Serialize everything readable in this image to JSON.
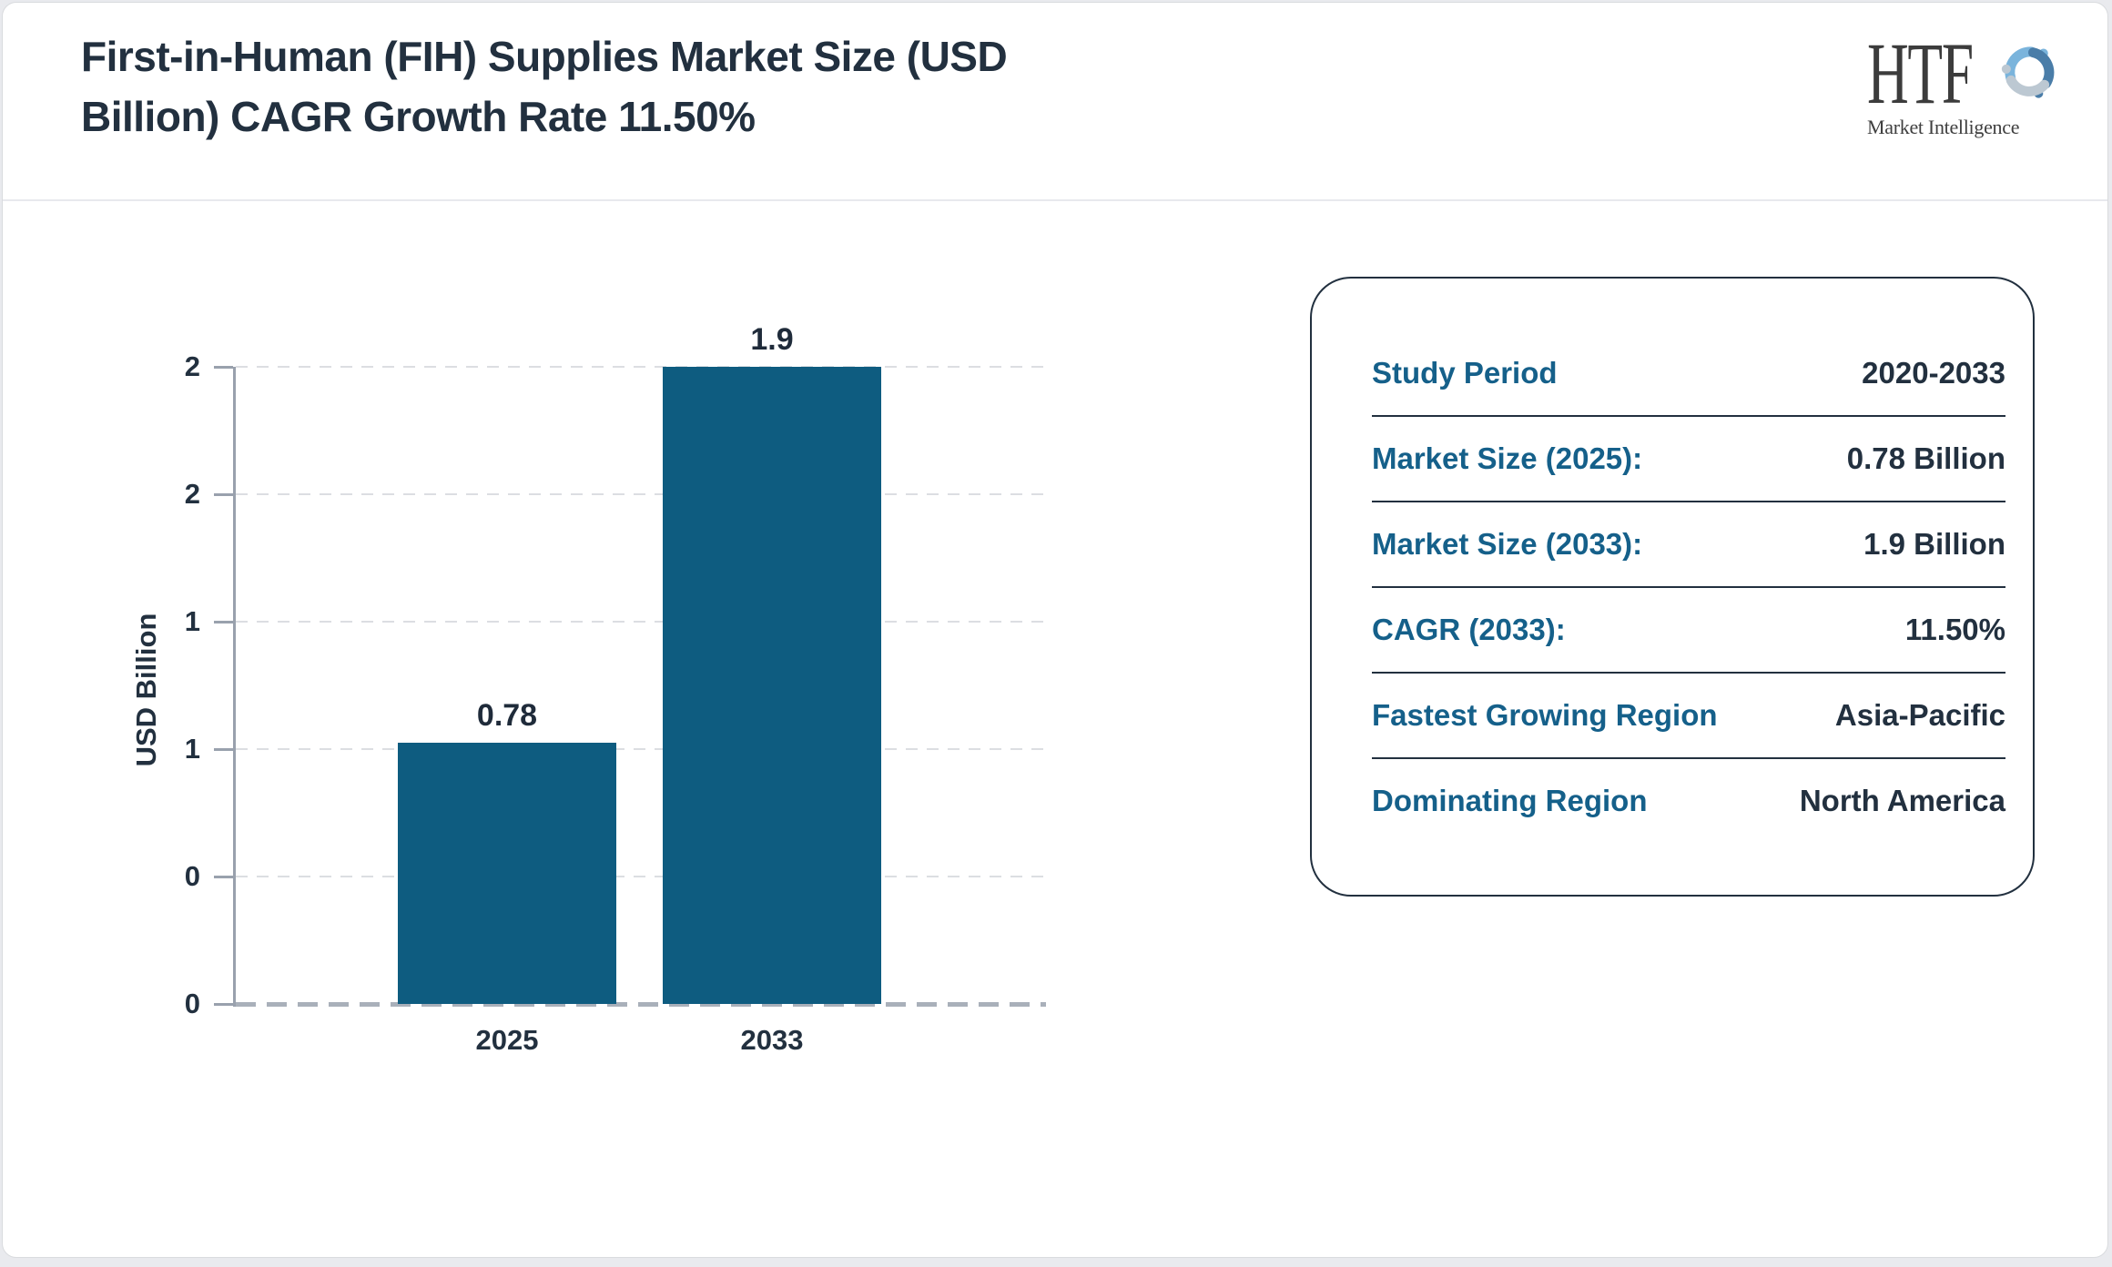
{
  "header": {
    "title_line1": "First-in-Human (FIH) Supplies Market Size (USD",
    "title_line2": "Billion) CAGR Growth Rate 11.50%",
    "logo": {
      "text": "HTF",
      "subtext": "Market Intelligence",
      "icon": "tri-swirl-people-icon",
      "icon_colors": [
        "#7ab4dc",
        "#4a7da8",
        "#bcc8d2"
      ]
    }
  },
  "chart_data": {
    "type": "bar",
    "title": "First-in-Human (FIH) Supplies Market Size (USD Billion) CAGR Growth Rate 11.50%",
    "categories": [
      "2025",
      "2033"
    ],
    "values": [
      0.78,
      1.9
    ],
    "bar_value_labels": [
      "0.78",
      "1.9"
    ],
    "xlabel": "",
    "ylabel": "USD Billion",
    "ylim": [
      0,
      1.9
    ],
    "ytick_values": [
      0,
      0.38,
      0.76,
      1.14,
      1.52,
      1.9
    ],
    "ytick_labels": [
      "0",
      "0",
      "1",
      "1",
      "2",
      "2"
    ],
    "grid": "horizontal-dashed",
    "legend_position": "none",
    "bar_color": "#0e5c80"
  },
  "info_panel": {
    "rows": [
      {
        "label": "Study Period",
        "value": "2020-2033"
      },
      {
        "label": "Market Size (2025):",
        "value": "0.78 Billion"
      },
      {
        "label": "Market Size (2033):",
        "value": "1.9 Billion"
      },
      {
        "label": "CAGR (2033):",
        "value": "11.50%"
      },
      {
        "label": "Fastest Growing Region",
        "value": "Asia-Pacific"
      },
      {
        "label": "Dominating Region",
        "value": "North America"
      }
    ]
  },
  "colors": {
    "bar": "#0e5c80",
    "label_teal": "#15608a",
    "text_dark": "#22303f",
    "axis_gray": "#99a1ad",
    "grid_gray": "#dcdee2",
    "baseline_gray": "#a9b0ba",
    "panel_border": "#22303f",
    "card_border": "#d9dbde"
  }
}
